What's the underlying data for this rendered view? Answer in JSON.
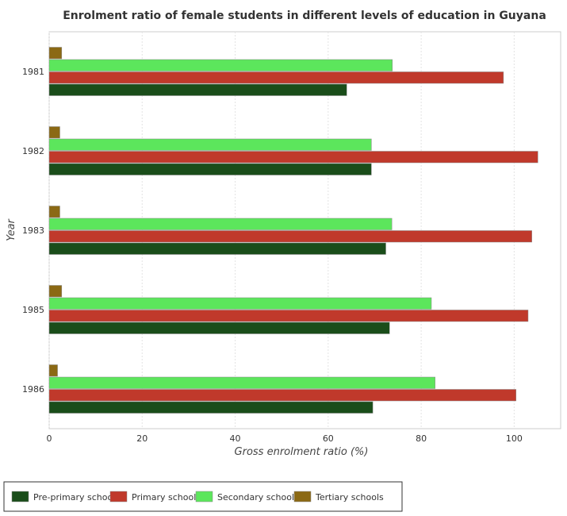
{
  "chart_data": {
    "type": "bar",
    "orientation": "horizontal",
    "title": "Enrolment ratio of female students in different levels of education in Guyana",
    "xlabel": "Gross enrolment ratio (%)",
    "ylabel": "Year",
    "xlim": [
      0,
      110
    ],
    "xticks": [
      0,
      20,
      40,
      60,
      80,
      100
    ],
    "categories": [
      "1981",
      "1982",
      "1983",
      "1985",
      "1986"
    ],
    "grid": true,
    "legend_position": "bottom-left",
    "series": [
      {
        "name": "Pre-primary schools",
        "color": "#1a4d1a",
        "values": [
          64.0,
          69.3,
          72.4,
          73.2,
          69.6
        ]
      },
      {
        "name": "Primary schools",
        "color": "#c0392b",
        "values": [
          97.7,
          105.1,
          103.8,
          103.0,
          100.4
        ]
      },
      {
        "name": "Secondary schools",
        "color": "#5ce65c",
        "values": [
          73.8,
          69.3,
          73.7,
          82.2,
          83.0
        ]
      },
      {
        "name": "Tertiary schools",
        "color": "#8b6914",
        "values": [
          2.7,
          2.3,
          2.3,
          2.7,
          1.8
        ]
      }
    ]
  }
}
